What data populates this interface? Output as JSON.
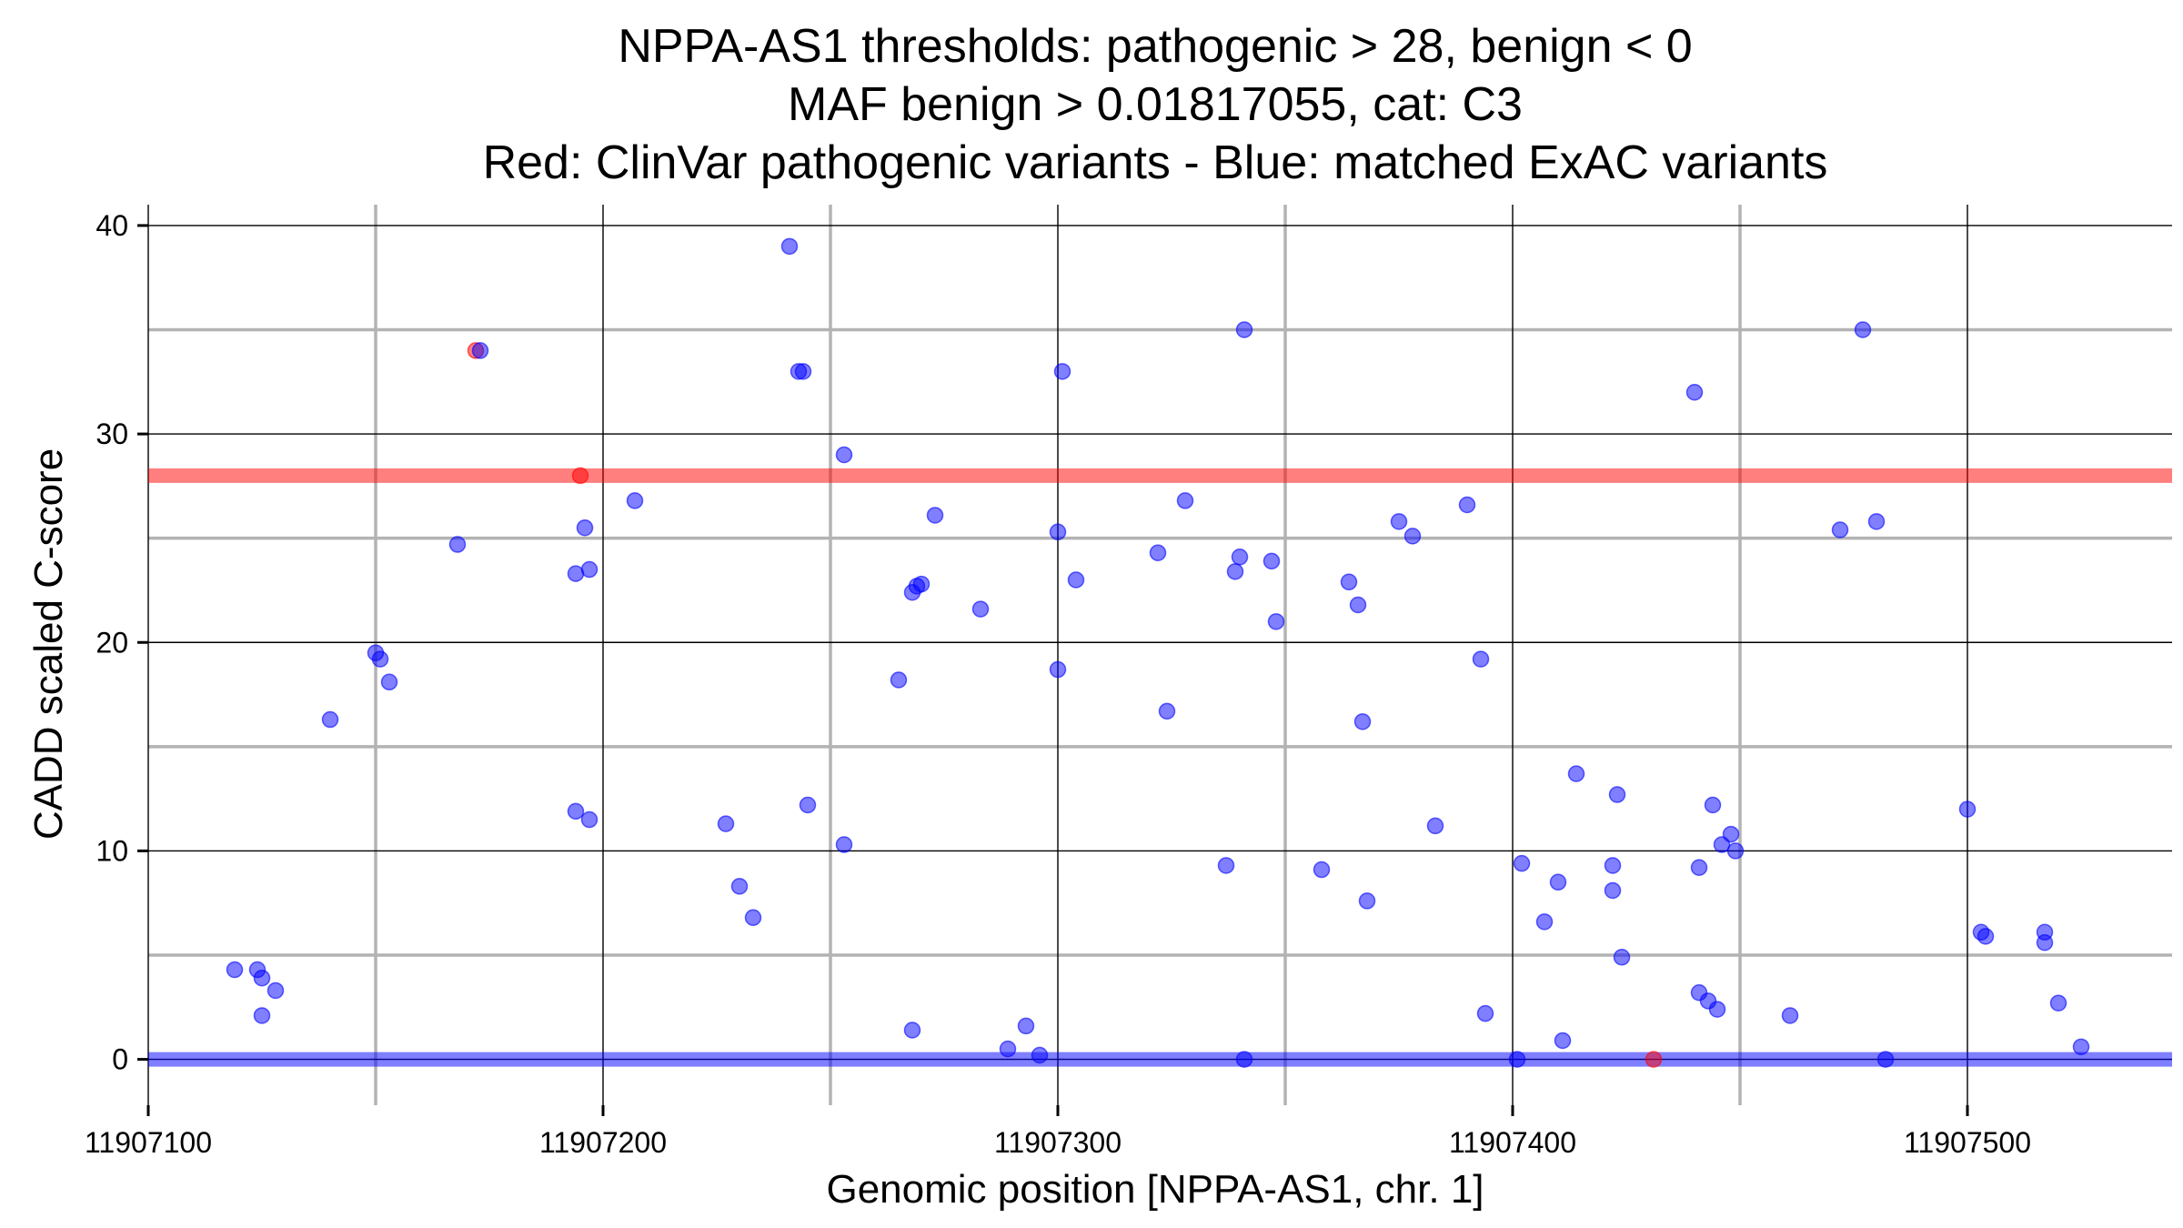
{
  "chart_data": {
    "type": "scatter",
    "title_lines": [
      "NPPA-AS1 thresholds: pathogenic > 28, benign < 0",
      "MAF benign > 0.01817055, cat: C3",
      "Red: ClinVar pathogenic variants - Blue: matched ExAC variants"
    ],
    "xlabel": "Genomic position [NPPA-AS1, chr. 1]",
    "ylabel": "CADD scaled C-score",
    "xlim": [
      11907100,
      11907545
    ],
    "ylim": [
      -2.2,
      41
    ],
    "x_ticks": [
      11907100,
      11907200,
      11907300,
      11907400,
      11907500
    ],
    "x_tick_labels": [
      "11907100",
      "11907200",
      "11907300",
      "11907400",
      "11907500"
    ],
    "y_ticks": [
      0,
      10,
      20,
      30,
      40
    ],
    "y_tick_labels": [
      "0",
      "10",
      "20",
      "30",
      "40"
    ],
    "y_minor_grid": [
      5,
      15,
      25,
      35
    ],
    "x_minor_grid": [
      11907150,
      11907250,
      11907350,
      11907450
    ],
    "thresholds": [
      {
        "value": 28,
        "color": "#ff0000",
        "meaning": "pathogenic"
      },
      {
        "value": 0,
        "color": "#0000ff",
        "meaning": "benign"
      }
    ],
    "series": [
      {
        "color": "#ff0000",
        "points": [
          [
            11907172,
            34
          ],
          [
            11907195,
            28
          ],
          [
            11907431,
            0
          ]
        ]
      },
      {
        "color": "#0000ff",
        "points": [
          [
            11907119,
            4.3
          ],
          [
            11907124,
            4.3
          ],
          [
            11907125,
            3.9
          ],
          [
            11907125,
            2.1
          ],
          [
            11907128,
            3.3
          ],
          [
            11907140,
            16.3
          ],
          [
            11907150,
            19.5
          ],
          [
            11907151,
            19.2
          ],
          [
            11907153,
            18.1
          ],
          [
            11907168,
            24.7
          ],
          [
            11907173,
            34
          ],
          [
            11907194,
            23.3
          ],
          [
            11907194,
            11.9
          ],
          [
            11907196,
            25.5
          ],
          [
            11907197,
            23.5
          ],
          [
            11907197,
            11.5
          ],
          [
            11907207,
            26.8
          ],
          [
            11907227,
            11.3
          ],
          [
            11907230,
            8.3
          ],
          [
            11907233,
            6.8
          ],
          [
            11907241,
            39
          ],
          [
            11907243,
            33
          ],
          [
            11907244,
            33
          ],
          [
            11907245,
            12.2
          ],
          [
            11907253,
            29
          ],
          [
            11907253,
            10.3
          ],
          [
            11907265,
            18.2
          ],
          [
            11907268,
            22.4
          ],
          [
            11907269,
            22.7
          ],
          [
            11907270,
            22.8
          ],
          [
            11907273,
            26.1
          ],
          [
            11907268,
            1.4
          ],
          [
            11907283,
            21.6
          ],
          [
            11907289,
            0.5
          ],
          [
            11907293,
            1.6
          ],
          [
            11907296,
            0.2
          ],
          [
            11907300,
            25.3
          ],
          [
            11907300,
            18.7
          ],
          [
            11907301,
            33
          ],
          [
            11907304,
            23
          ],
          [
            11907322,
            24.3
          ],
          [
            11907324,
            16.7
          ],
          [
            11907328,
            26.8
          ],
          [
            11907337,
            9.3
          ],
          [
            11907339,
            23.4
          ],
          [
            11907340,
            24.1
          ],
          [
            11907341,
            35
          ],
          [
            11907341,
            0
          ],
          [
            11907347,
            23.9
          ],
          [
            11907348,
            21
          ],
          [
            11907358,
            9.1
          ],
          [
            11907364,
            22.9
          ],
          [
            11907366,
            21.8
          ],
          [
            11907367,
            16.2
          ],
          [
            11907368,
            7.6
          ],
          [
            11907375,
            25.8
          ],
          [
            11907378,
            25.1
          ],
          [
            11907383,
            11.2
          ],
          [
            11907390,
            26.6
          ],
          [
            11907393,
            19.2
          ],
          [
            11907394,
            2.2
          ],
          [
            11907401,
            0
          ],
          [
            11907402,
            9.4
          ],
          [
            11907407,
            6.6
          ],
          [
            11907410,
            8.5
          ],
          [
            11907411,
            0.9
          ],
          [
            11907414,
            13.7
          ],
          [
            11907422,
            9.3
          ],
          [
            11907422,
            8.1
          ],
          [
            11907423,
            12.7
          ],
          [
            11907424,
            4.9
          ],
          [
            11907440,
            32
          ],
          [
            11907441,
            9.2
          ],
          [
            11907441,
            3.2
          ],
          [
            11907443,
            2.8
          ],
          [
            11907444,
            12.2
          ],
          [
            11907445,
            2.4
          ],
          [
            11907446,
            10.3
          ],
          [
            11907448,
            10.8
          ],
          [
            11907449,
            10
          ],
          [
            11907461,
            2.1
          ],
          [
            11907472,
            25.4
          ],
          [
            11907477,
            35
          ],
          [
            11907480,
            25.8
          ],
          [
            11907482,
            0
          ],
          [
            11907500,
            12
          ],
          [
            11907503,
            6.1
          ],
          [
            11907504,
            5.9
          ],
          [
            11907517,
            6.1
          ],
          [
            11907517,
            5.6
          ],
          [
            11907520,
            2.7
          ],
          [
            11907525,
            0.6
          ]
        ]
      }
    ]
  }
}
